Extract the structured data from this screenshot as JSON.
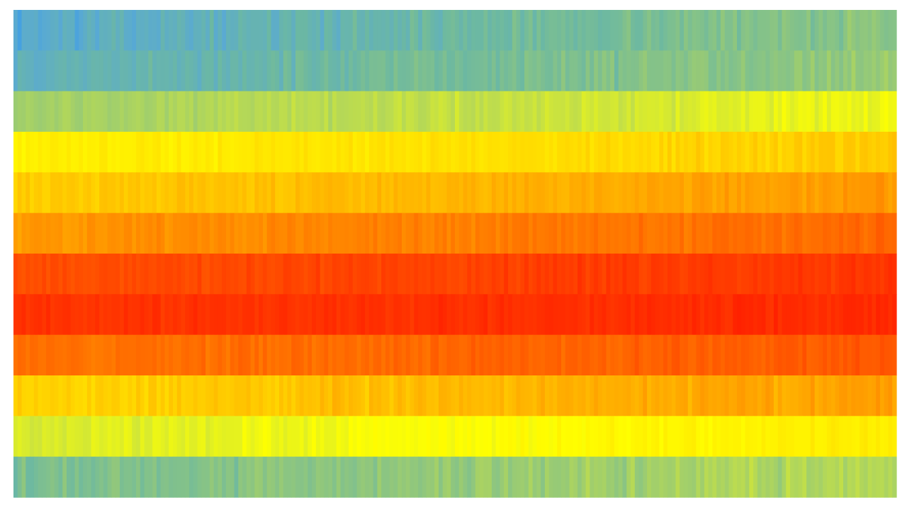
{
  "chart_data": {
    "type": "heatmap",
    "title": "",
    "xlabel": "",
    "ylabel": "",
    "grid": false,
    "legend": "none",
    "rows": 12,
    "columns": 216,
    "value_range": [
      0,
      1
    ],
    "colormap": [
      "#1a8cff",
      "#5aaad2",
      "#6cb8a2",
      "#93c87a",
      "#bfdd4c",
      "#ffff00",
      "#ffd700",
      "#ff9900",
      "#ff5500",
      "#ff1100"
    ],
    "row_profile": [
      0.22,
      0.25,
      0.45,
      0.64,
      0.73,
      0.82,
      0.92,
      0.95,
      0.86,
      0.72,
      0.55,
      0.34
    ],
    "row_trend": [
      0.1,
      0.1,
      0.08,
      0.05,
      0.05,
      0.04,
      0.02,
      0.01,
      0.02,
      0.05,
      0.06,
      0.08
    ],
    "row_noise": [
      0.07,
      0.07,
      0.05,
      0.04,
      0.035,
      0.035,
      0.03,
      0.025,
      0.035,
      0.04,
      0.04,
      0.07
    ],
    "seed": 13
  }
}
